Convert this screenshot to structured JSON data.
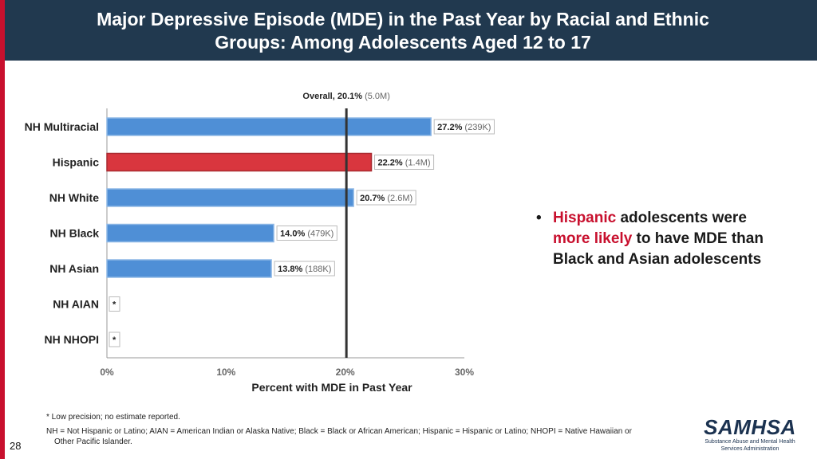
{
  "header": {
    "title_line1": "Major Depressive Episode (MDE) in the Past Year by Racial and Ethnic",
    "title_line2": "Groups: Among Adolescents Aged 12 to 17"
  },
  "chart_data": {
    "type": "bar",
    "orientation": "horizontal",
    "title": "",
    "xlabel": "Percent with MDE in Past Year",
    "ylabel": "",
    "xlim": [
      0,
      30
    ],
    "xticks": [
      "0%",
      "10%",
      "20%",
      "30%"
    ],
    "reference_line": {
      "value": 20.1,
      "label_bold": "Overall, 20.1%",
      "label_light": "(5.0M)"
    },
    "categories": [
      "NH Multiracial",
      "Hispanic",
      "NH White",
      "NH Black",
      "NH Asian",
      "NH AIAN",
      "NH NHOPI"
    ],
    "values": [
      27.2,
      22.2,
      20.7,
      14.0,
      13.8,
      null,
      null
    ],
    "value_labels": [
      "27.2%",
      "22.2%",
      "20.7%",
      "14.0%",
      "13.8%",
      "*",
      "*"
    ],
    "count_labels": [
      "(239K)",
      "(1.4M)",
      "(2.6M)",
      "(479K)",
      "(188K)",
      "",
      ""
    ],
    "highlight": [
      "Hispanic"
    ],
    "colors": {
      "default": "#4f8fd6",
      "default_edge": "#8fb8e6",
      "highlight": "#d9363e",
      "highlight_edge": "#a82a30",
      "reference": "#333333"
    }
  },
  "bullet": {
    "part1_red": "Hispanic",
    "part2": " adolescents were",
    "part3_red": "more likely",
    "part4": " to have MDE than",
    "part5": "Black and Asian adolescents"
  },
  "footnotes": {
    "note1": "* Low precision; no estimate reported.",
    "note2": "NH = Not Hispanic or Latino; AIAN = American Indian or Alaska Native; Black = Black or African American; Hispanic = Hispanic or Latino; NHOPI = Native Hawaiian or",
    "note3": "Other Pacific Islander."
  },
  "page_number": "28",
  "logo": {
    "main": "SAMHSA",
    "sub1": "Substance Abuse and Mental Health",
    "sub2": "Services Administration"
  }
}
